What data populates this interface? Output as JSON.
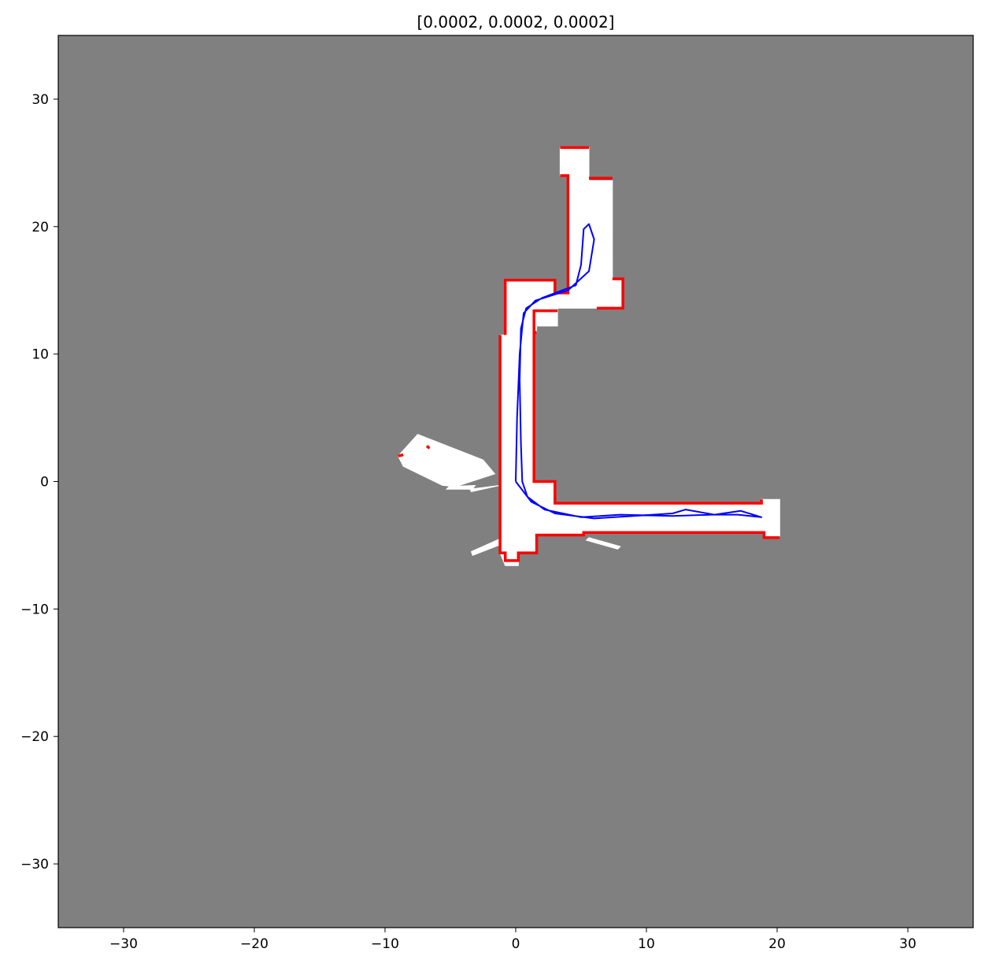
{
  "chart_data": {
    "type": "scatter",
    "title": "[0.0002, 0.0002, 0.0002]",
    "xlabel": "",
    "ylabel": "",
    "xlim": [
      -35,
      35
    ],
    "ylim": [
      -35,
      35
    ],
    "x_ticks": [
      -30,
      -20,
      -10,
      0,
      10,
      20,
      30
    ],
    "y_ticks": [
      30,
      20,
      10,
      0,
      -10,
      -20,
      -30
    ],
    "x_tick_labels": [
      "−30",
      "−20",
      "−10",
      "0",
      "10",
      "20",
      "30"
    ],
    "y_tick_labels": [
      "30",
      "20",
      "10",
      "0",
      "−10",
      "−20",
      "−30"
    ],
    "grid": false,
    "colors": {
      "unknown": "#808080",
      "free": "#ffffff",
      "occupied": "#ff0000",
      "trajectory": "#0000ff"
    },
    "series": [
      {
        "role": "free",
        "polygons": [
          [
            [
              -0.8,
              15.8
            ],
            [
              3.0,
              15.8
            ],
            [
              3.0,
              14.8
            ],
            [
              4.0,
              14.8
            ],
            [
              4.0,
              24.0
            ],
            [
              3.4,
              24.0
            ],
            [
              3.4,
              26.2
            ],
            [
              5.6,
              26.2
            ],
            [
              5.6,
              23.6
            ],
            [
              7.4,
              23.6
            ],
            [
              7.4,
              15.9
            ],
            [
              8.2,
              15.9
            ],
            [
              8.2,
              13.6
            ],
            [
              3.2,
              13.6
            ],
            [
              3.2,
              12.2
            ],
            [
              1.6,
              12.2
            ],
            [
              1.6,
              11.7
            ],
            [
              1.4,
              11.7
            ],
            [
              1.4,
              0.0
            ],
            [
              3.0,
              0.0
            ],
            [
              3.0,
              -1.7
            ],
            [
              18.8,
              -1.7
            ],
            [
              18.8,
              -1.4
            ],
            [
              20.2,
              -1.4
            ],
            [
              20.2,
              -4.3
            ],
            [
              19.0,
              -4.3
            ],
            [
              19.0,
              -4.0
            ],
            [
              5.2,
              -4.0
            ],
            [
              5.2,
              -4.2
            ],
            [
              3.2,
              -4.2
            ],
            [
              1.6,
              -4.2
            ],
            [
              1.6,
              -5.6
            ],
            [
              0.2,
              -5.6
            ],
            [
              0.2,
              -6.6
            ],
            [
              -0.8,
              -6.6
            ],
            [
              -1.2,
              -5.6
            ],
            [
              -1.2,
              11.5
            ],
            [
              -0.8,
              11.5
            ]
          ],
          [
            [
              -9.0,
              2.0
            ],
            [
              -7.5,
              3.7
            ],
            [
              -2.5,
              1.7
            ],
            [
              -1.6,
              0.6
            ],
            [
              -4.6,
              -0.4
            ],
            [
              -5.6,
              -0.3
            ],
            [
              -8.6,
              1.2
            ]
          ],
          [
            [
              -5.3,
              -0.6
            ],
            [
              -3.3,
              -0.6
            ],
            [
              -3.1,
              -0.3
            ],
            [
              -5.1,
              -0.4
            ]
          ],
          [
            [
              -3.5,
              -0.6
            ],
            [
              -1.2,
              -0.3
            ],
            [
              -3.4,
              -0.8
            ]
          ],
          [
            [
              -3.4,
              -5.5
            ],
            [
              -1.0,
              -4.4
            ],
            [
              -0.8,
              -4.8
            ],
            [
              -3.3,
              -5.8
            ]
          ],
          [
            [
              5.6,
              -4.4
            ],
            [
              8.0,
              -5.1
            ],
            [
              7.8,
              -5.3
            ],
            [
              5.4,
              -4.6
            ]
          ]
        ]
      },
      {
        "role": "occupied",
        "polylines": [
          [
            [
              -0.8,
              11.5
            ],
            [
              -0.8,
              15.8
            ],
            [
              3.0,
              15.8
            ],
            [
              3.0,
              14.8
            ],
            [
              4.0,
              14.8
            ],
            [
              4.0,
              24.0
            ],
            [
              3.4,
              24.0
            ]
          ],
          [
            [
              3.4,
              26.2
            ],
            [
              5.6,
              26.2
            ]
          ],
          [
            [
              5.6,
              23.8
            ],
            [
              7.4,
              23.8
            ]
          ],
          [
            [
              7.4,
              15.9
            ],
            [
              8.2,
              15.9
            ],
            [
              8.2,
              13.6
            ],
            [
              6.2,
              13.6
            ]
          ],
          [
            [
              -1.2,
              11.5
            ],
            [
              -1.2,
              -5.6
            ],
            [
              -0.8,
              -5.6
            ],
            [
              -0.8,
              -6.2
            ],
            [
              0.2,
              -6.2
            ],
            [
              0.2,
              -5.6
            ],
            [
              1.6,
              -5.6
            ],
            [
              1.6,
              -4.2
            ],
            [
              5.2,
              -4.2
            ],
            [
              5.2,
              -4.0
            ],
            [
              19.0,
              -4.0
            ],
            [
              19.0,
              -4.4
            ],
            [
              20.2,
              -4.4
            ]
          ],
          [
            [
              1.6,
              11.7
            ],
            [
              1.4,
              11.7
            ],
            [
              1.4,
              0.0
            ],
            [
              3.0,
              0.0
            ],
            [
              3.0,
              -1.7
            ],
            [
              18.8,
              -1.7
            ],
            [
              18.8,
              -1.4
            ]
          ],
          [
            [
              1.4,
              11.8
            ],
            [
              1.4,
              13.4
            ],
            [
              3.2,
              13.4
            ]
          ],
          [
            [
              -9.0,
              2.0
            ],
            [
              -8.6,
              2.1
            ]
          ],
          [
            [
              -6.8,
              2.8
            ],
            [
              -6.6,
              2.6
            ]
          ]
        ]
      },
      {
        "role": "trajectory",
        "polylines": [
          [
            [
              0.0,
              0.0
            ],
            [
              0.1,
              5.0
            ],
            [
              0.3,
              10.0
            ],
            [
              0.6,
              13.2
            ],
            [
              1.5,
              14.2
            ],
            [
              4.0,
              15.0
            ],
            [
              5.6,
              16.5
            ],
            [
              6.0,
              19.0
            ],
            [
              5.6,
              20.2
            ],
            [
              5.2,
              19.8
            ],
            [
              5.0,
              17.0
            ],
            [
              4.6,
              15.4
            ],
            [
              2.0,
              14.4
            ],
            [
              0.8,
              13.6
            ],
            [
              0.4,
              12.0
            ],
            [
              0.3,
              8.0
            ],
            [
              0.4,
              3.0
            ],
            [
              0.5,
              0.0
            ],
            [
              0.9,
              -1.2
            ],
            [
              2.2,
              -2.2
            ],
            [
              5.0,
              -2.8
            ],
            [
              8.0,
              -2.6
            ],
            [
              12.0,
              -2.7
            ],
            [
              15.0,
              -2.6
            ],
            [
              17.0,
              -2.6
            ],
            [
              18.8,
              -2.8
            ],
            [
              17.2,
              -2.3
            ],
            [
              15.2,
              -2.6
            ],
            [
              13.0,
              -2.2
            ],
            [
              12.0,
              -2.5
            ],
            [
              9.0,
              -2.7
            ],
            [
              6.0,
              -2.9
            ],
            [
              3.0,
              -2.5
            ],
            [
              1.2,
              -1.6
            ],
            [
              0.0,
              0.0
            ]
          ]
        ]
      }
    ]
  }
}
